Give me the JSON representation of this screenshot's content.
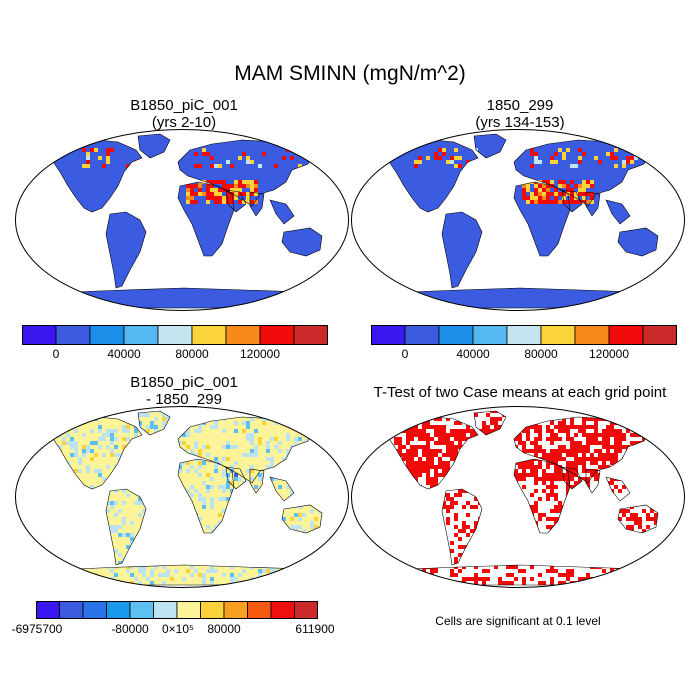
{
  "title": "MAM SMINN (mgN/m^2)",
  "panels": [
    {
      "title_line1": "B1850_piC_001",
      "title_line2": "(yrs 2-10)"
    },
    {
      "title_line1": "1850_299",
      "title_line2": "(yrs 134-153)"
    },
    {
      "title_line1": "B1850_piC_001",
      "title_line2": "- 1850_299"
    },
    {
      "title_line1": "T-Test of two Case means at each grid point",
      "title_line2": ""
    }
  ],
  "colorbar_top": {
    "colors": [
      "#3a17f0",
      "#3b5ce0",
      "#1a8ee8",
      "#56b8f0",
      "#c4e4f0",
      "#fbd33b",
      "#f78a1a",
      "#f00a0a",
      "#cc2a2a"
    ],
    "labels": [
      "0",
      "40000",
      "80000",
      "120000"
    ]
  },
  "colorbar_diff": {
    "colors": [
      "#3a17f0",
      "#3b5ce0",
      "#2a72e8",
      "#1a98ec",
      "#5ec0f0",
      "#bde3f2",
      "#fdf49a",
      "#fcd23a",
      "#f7a020",
      "#f55a10",
      "#ee1010",
      "#cc2a2a"
    ],
    "labels": [
      "-6975700",
      "-80000",
      "0×10⁵",
      "80000",
      "611900"
    ]
  },
  "ttest_note": "Cells are significant at 0.1 level"
}
